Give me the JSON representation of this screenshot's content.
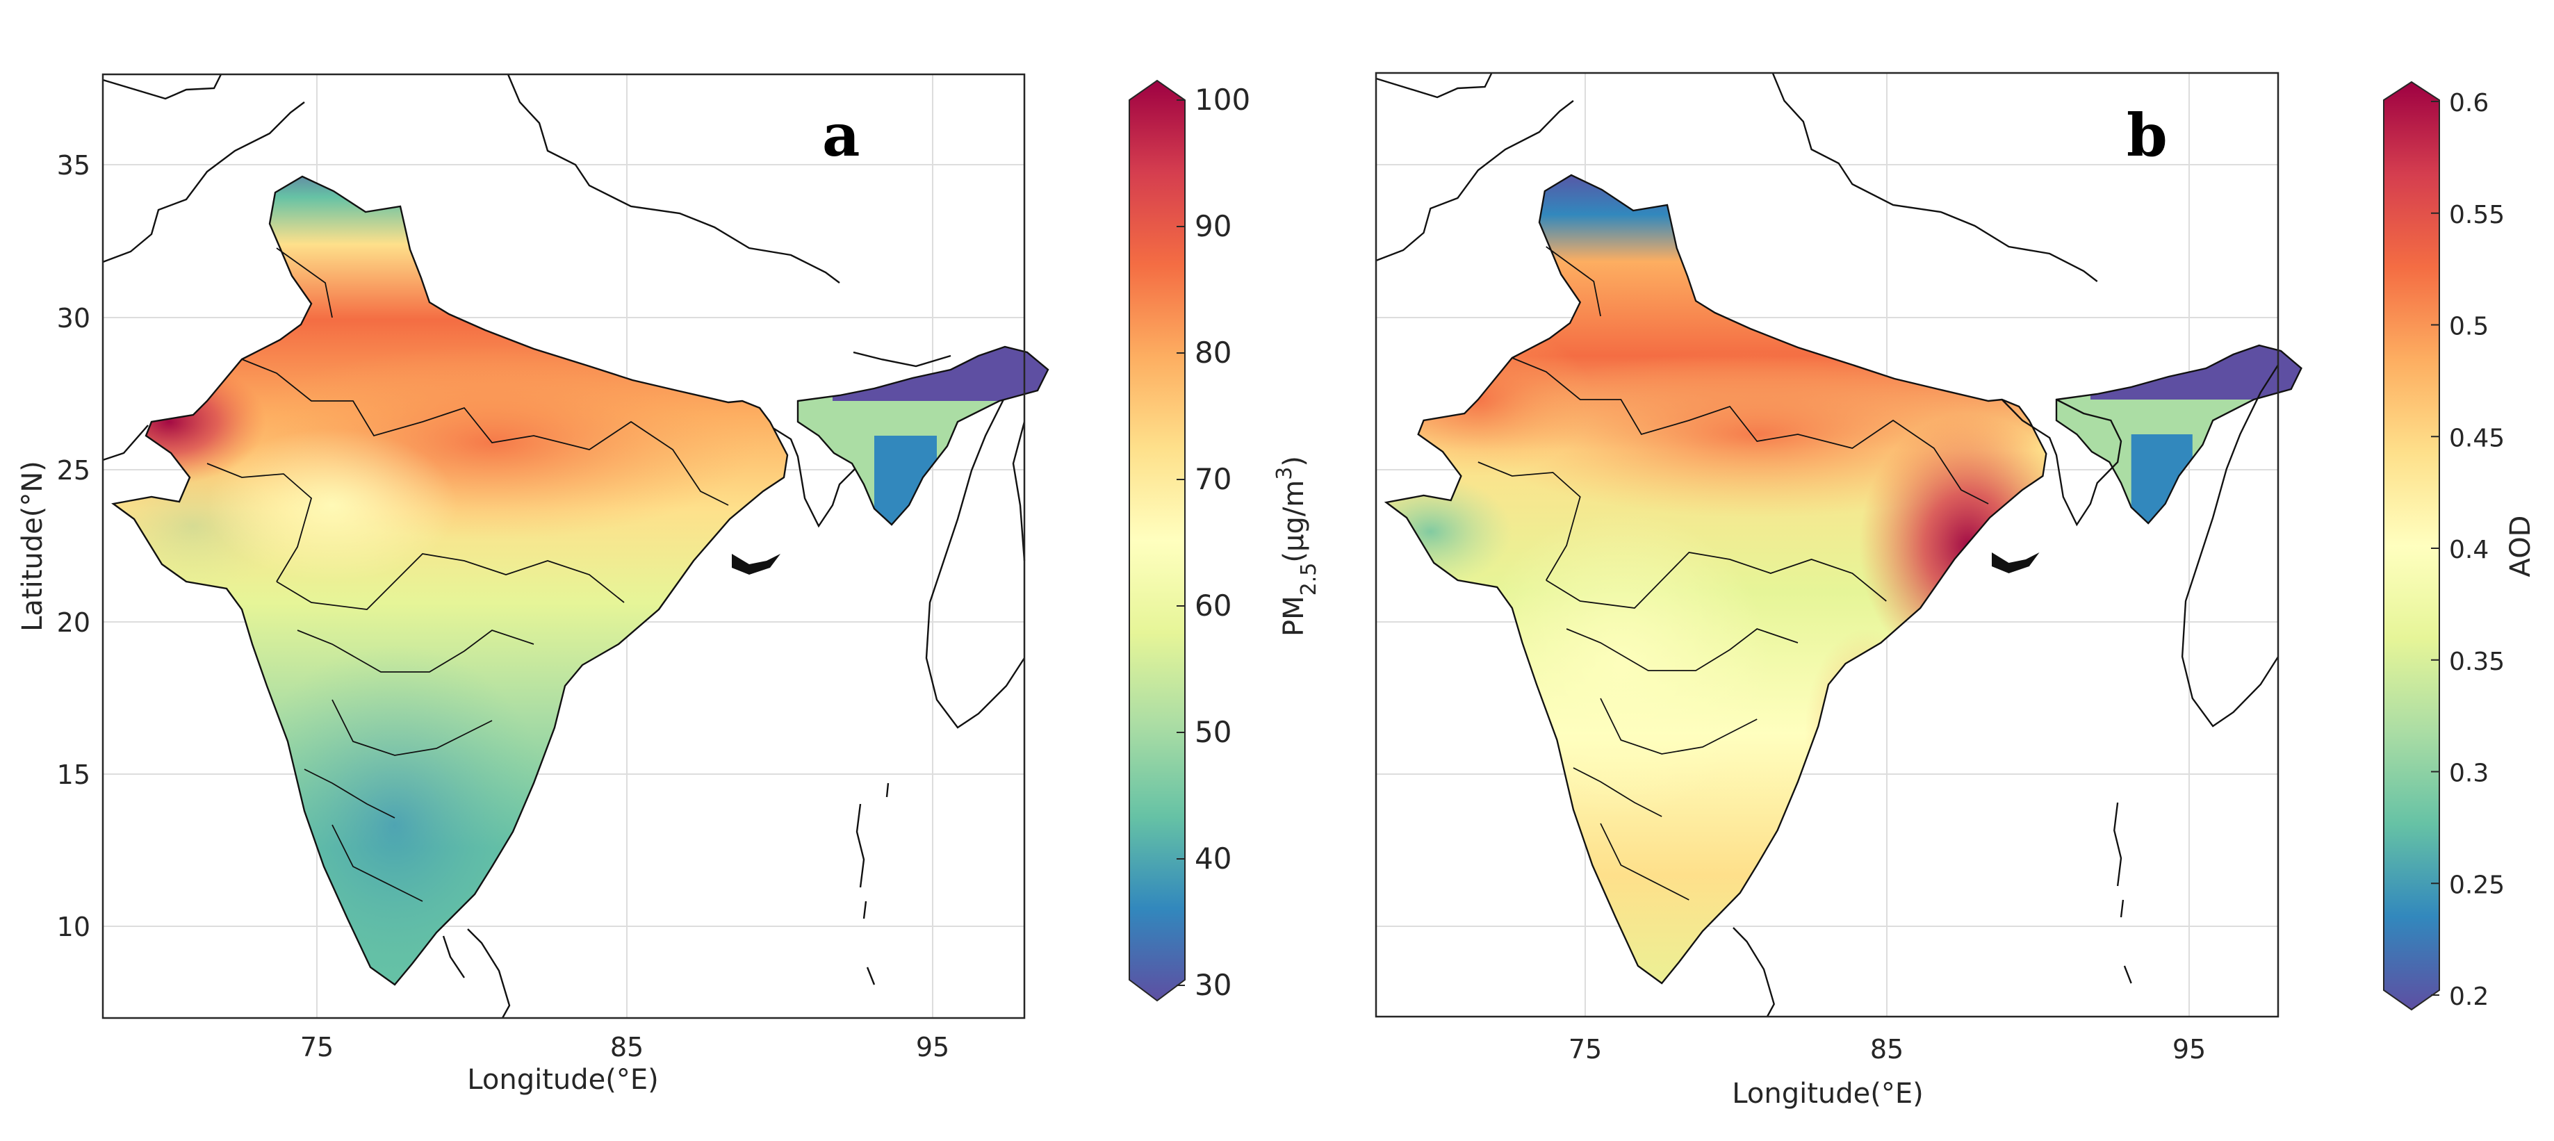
{
  "figure": {
    "panels": [
      {
        "id": "a",
        "label": "a",
        "xlabel": "Longitude(°E)",
        "ylabel": "Latitude(°N)",
        "xticks": [
          "75",
          "85",
          "95"
        ],
        "yticks": [
          "35",
          "30",
          "25",
          "20",
          "15",
          "10"
        ],
        "colorbar": {
          "title_main": "PM",
          "title_sub": "2.5",
          "title_unit_open": "(µg/m",
          "title_sup": "3",
          "title_unit_close": ")",
          "range": [
            30,
            100
          ],
          "ticks": [
            "100",
            "90",
            "80",
            "70",
            "60",
            "50",
            "40",
            "30"
          ],
          "colormap": "Spectral (reversed)"
        }
      },
      {
        "id": "b",
        "label": "b",
        "xlabel": "Longitude(°E)",
        "xticks": [
          "75",
          "85",
          "95"
        ],
        "colorbar": {
          "title": "AOD",
          "range": [
            0.2,
            0.6
          ],
          "ticks": [
            "0.6",
            "0.55",
            "0.5",
            "0.45",
            "0.4",
            "0.35",
            "0.3",
            "0.25",
            "0.2"
          ],
          "colormap": "Spectral (reversed)"
        }
      }
    ],
    "colors": {
      "c_low": "#5e4fa2",
      "c_blue": "#3288bd",
      "c_teal": "#66c2a5",
      "c_green": "#abdda4",
      "c_lightgreen": "#e6f598",
      "c_yellow": "#ffffbf",
      "c_lightorange": "#fee08b",
      "c_orange": "#fdae61",
      "c_redorange": "#f46d43",
      "c_red": "#d53e4f",
      "c_high": "#9e0142"
    }
  }
}
